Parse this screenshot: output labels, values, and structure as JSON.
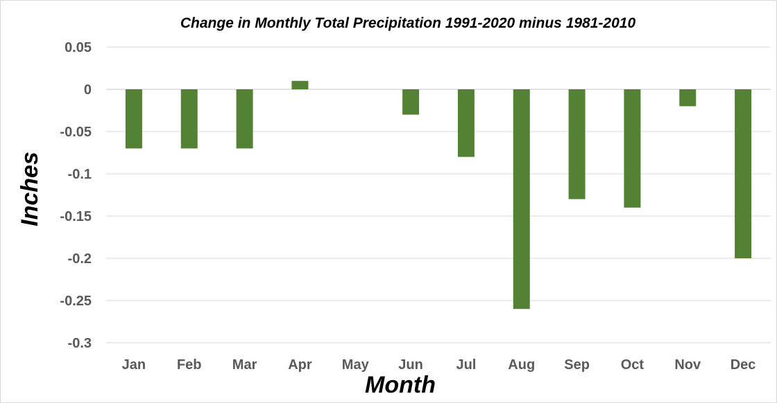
{
  "chart_data": {
    "type": "bar",
    "title": "Change in Monthly Total Precipitation 1991-2020 minus 1981-2010",
    "xlabel": "Month",
    "ylabel": "Inches",
    "categories": [
      "Jan",
      "Feb",
      "Mar",
      "Apr",
      "May",
      "Jun",
      "Jul",
      "Aug",
      "Sep",
      "Oct",
      "Nov",
      "Dec"
    ],
    "values": [
      -0.07,
      -0.07,
      -0.07,
      0.01,
      0,
      -0.03,
      -0.08,
      -0.26,
      -0.13,
      -0.14,
      -0.02,
      -0.2
    ],
    "ylim": [
      -0.3,
      0.05
    ],
    "yticks": [
      0.05,
      0,
      -0.05,
      -0.1,
      -0.15,
      -0.2,
      -0.25,
      -0.3
    ],
    "ytick_labels": [
      "0.05",
      "0",
      "-0.05",
      "-0.1",
      "-0.15",
      "-0.2",
      "-0.25",
      "-0.3"
    ],
    "grid": true,
    "legend": "none",
    "bar_color": "#548235"
  }
}
